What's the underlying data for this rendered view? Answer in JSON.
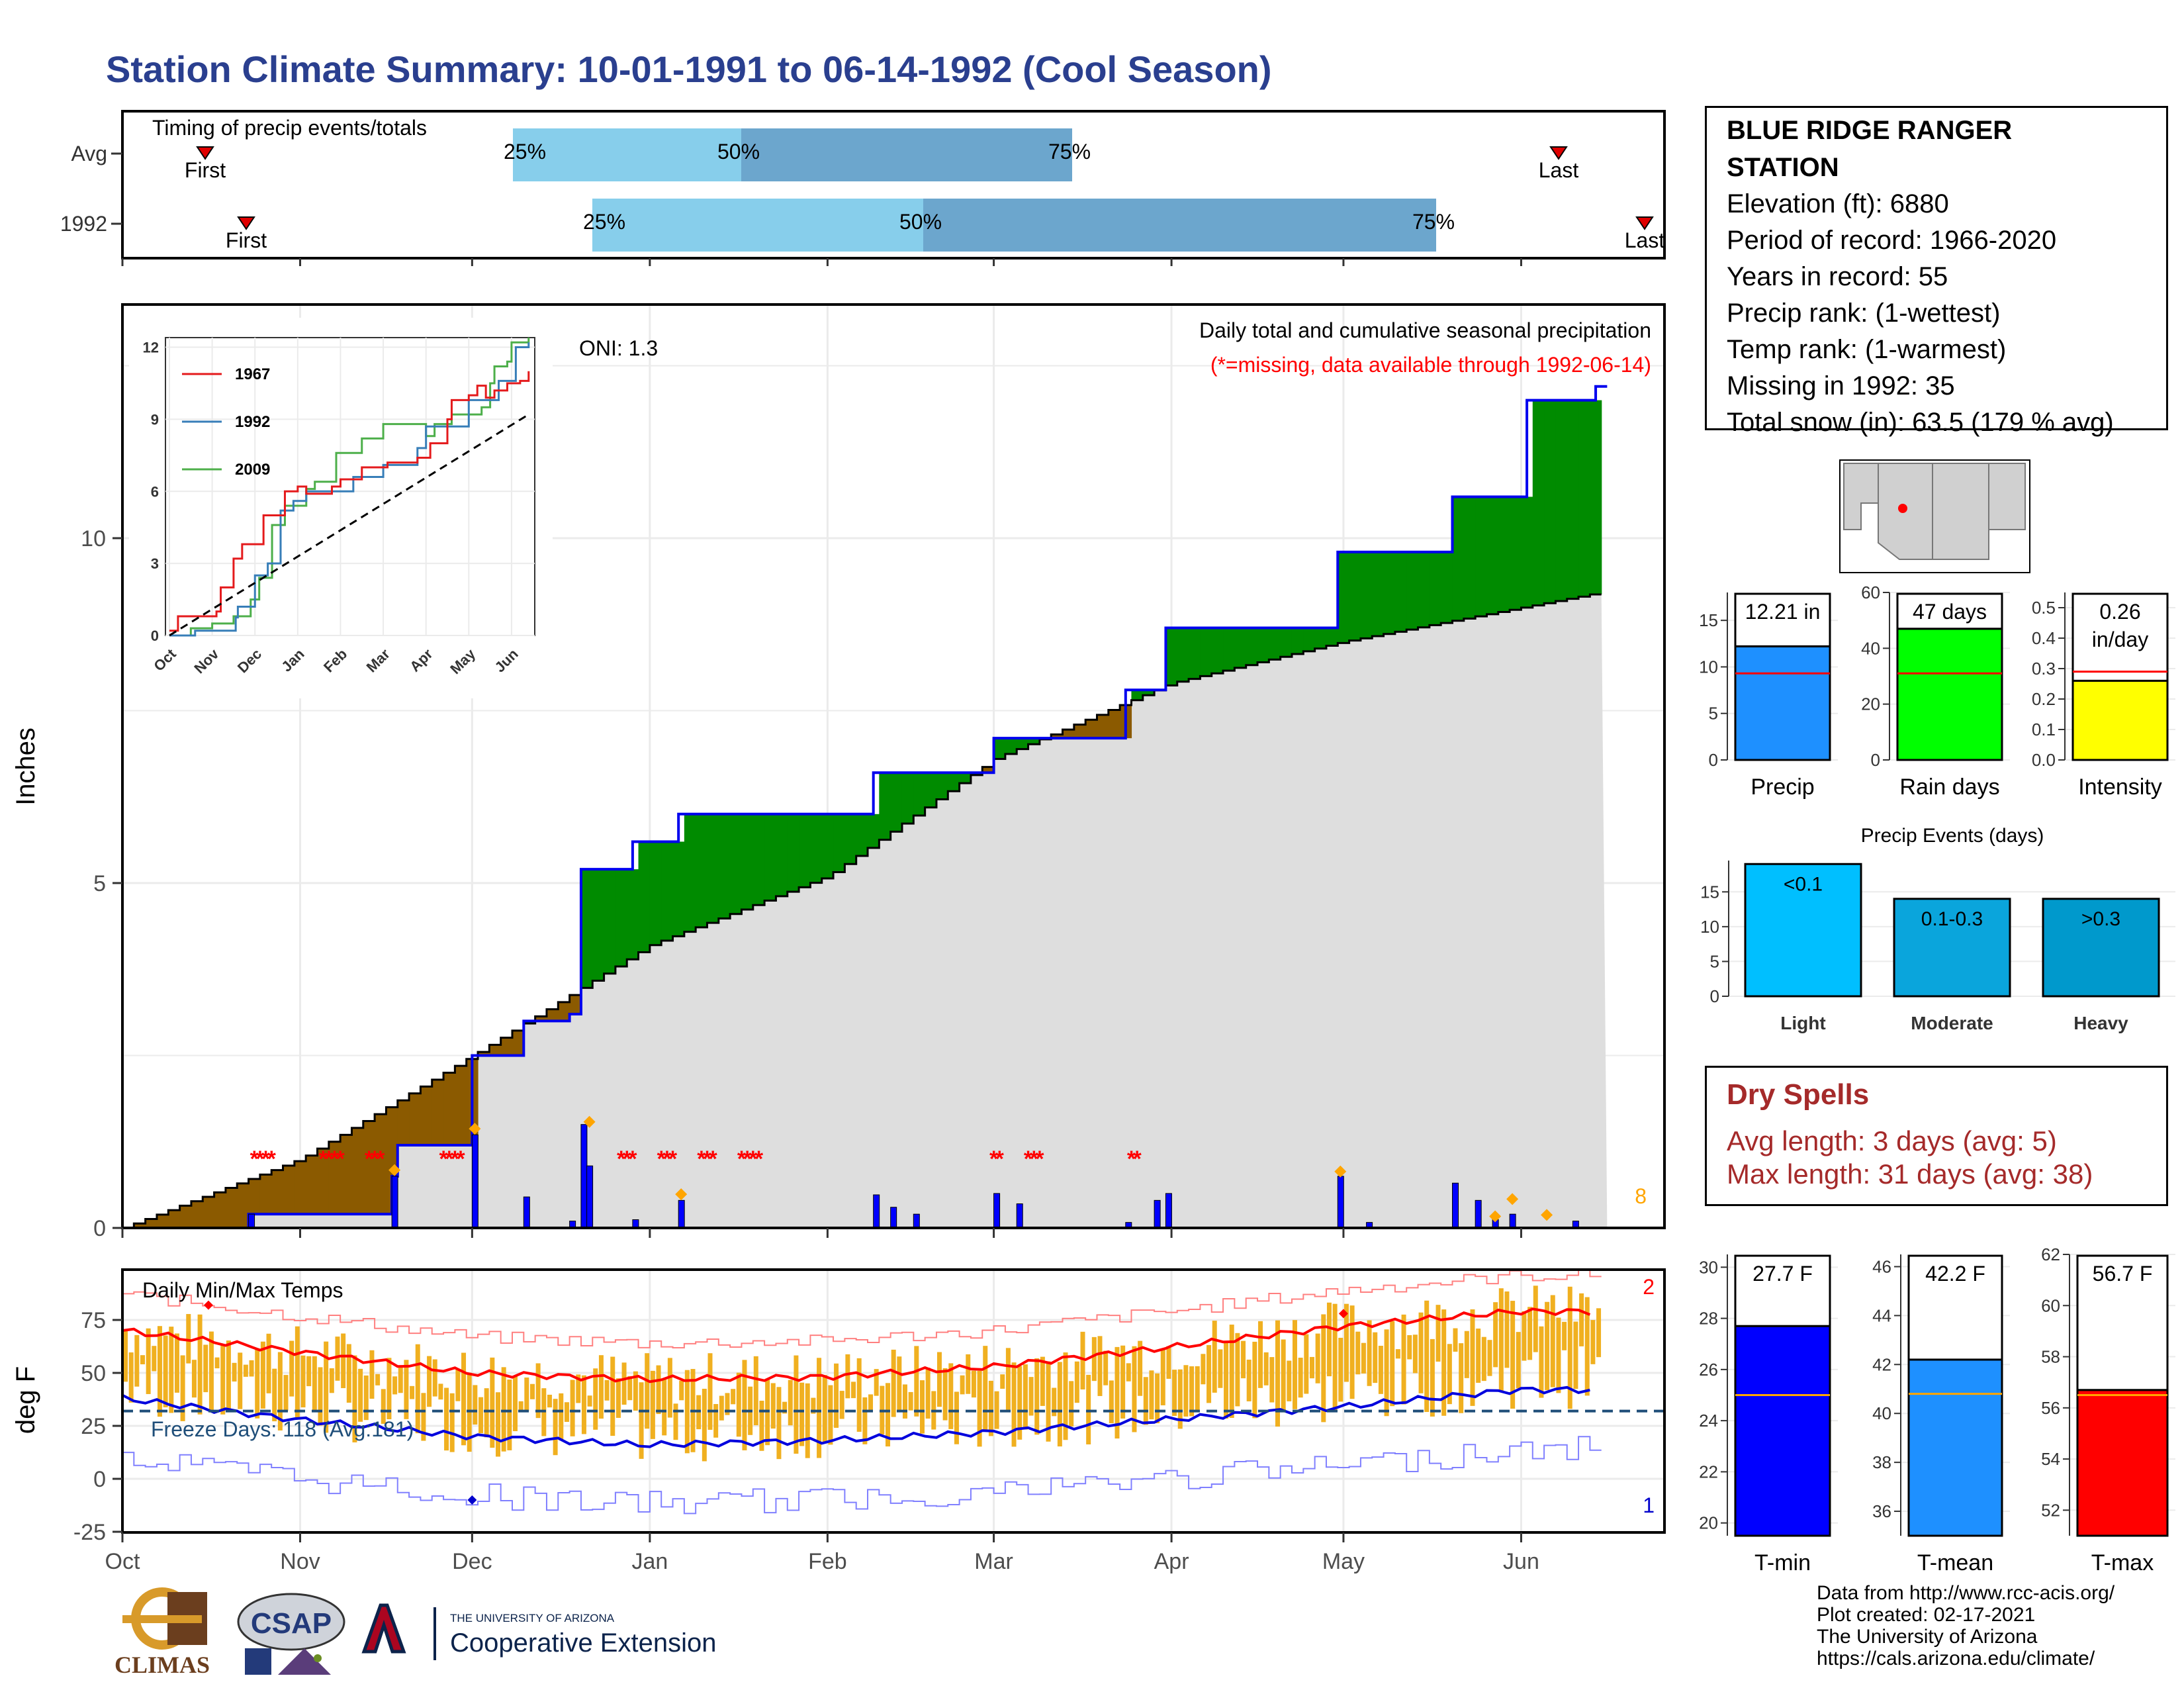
{
  "title": "Station Climate Summary: 10-01-1991 to 06-14-1992 (Cool Season)",
  "timing": {
    "label": "Timing of precip events/totals",
    "rows": [
      {
        "name": "Avg",
        "first_label": "First",
        "last_label": "Last",
        "q25": "25%",
        "q50": "50%",
        "q75": "75%"
      },
      {
        "name": "1992",
        "first_label": "First",
        "last_label": "Last",
        "q25": "25%",
        "q50": "50%",
        "q75": "75%"
      }
    ]
  },
  "station": {
    "name": "BLUE RIDGE RANGER STATION",
    "elevation": "Elevation (ft): 6880",
    "period": "Period of record: 1966-2020",
    "years": "Years in record: 55",
    "precip_rank": "Precip rank:  (1-wettest)",
    "temp_rank": "Temp rank:  (1-warmest)",
    "missing": "Missing in 1992: 35",
    "snow": "Total snow (in): 63.5 (179 % avg)"
  },
  "precip_panel": {
    "oni": "ONI: 1.3",
    "note1": "Daily total and cumulative seasonal precipitation",
    "note2": "(*=missing, data available through 1992-06-14)",
    "ylabel": "Inches",
    "count_label": "8"
  },
  "temp_panel": {
    "label": "Daily Min/Max Temps",
    "freeze": "Freeze Days: 118 (Avg:181)",
    "ylabel": "deg F",
    "count_max": "2",
    "count_min": "1"
  },
  "month_labels": [
    "Oct",
    "Nov",
    "Dec",
    "Jan",
    "Feb",
    "Mar",
    "Apr",
    "May",
    "Jun"
  ],
  "inset": {
    "legend": [
      "1967",
      "1992",
      "2009"
    ],
    "colors": [
      "#e41a1c",
      "#377eb8",
      "#4daf4a"
    ],
    "yticks": [
      "0",
      "3",
      "6",
      "9",
      "12"
    ],
    "xticks": [
      "Oct",
      "Nov",
      "Dec",
      "Jan",
      "Feb",
      "Mar",
      "Apr",
      "May",
      "Jun"
    ]
  },
  "summary_bars": [
    {
      "label": "Precip",
      "value_text": "12.21 in",
      "value": 12.21,
      "avg": 9.3,
      "ylim": [
        0,
        18
      ],
      "ticks": [
        0,
        5,
        10,
        15
      ],
      "color": "#1e90ff"
    },
    {
      "label": "Rain days",
      "value_text": "47 days",
      "value": 47,
      "avg": 31,
      "ylim": [
        0,
        60
      ],
      "ticks": [
        0,
        20,
        40,
        60
      ],
      "color": "#00ff00"
    },
    {
      "label": "Intensity",
      "value_text": "0.26 in/day",
      "value": 0.26,
      "avg": 0.29,
      "ylim": [
        0,
        0.55
      ],
      "ticks": [
        "0.0",
        "0.1",
        "0.2",
        "0.3",
        "0.4",
        "0.5"
      ],
      "color": "#ffff00"
    }
  ],
  "events": {
    "title": "Precip Events (days)",
    "bars": [
      {
        "label": "Light",
        "top": "<0.1",
        "value": 19,
        "color": "#00bfff"
      },
      {
        "label": "Moderate",
        "top": "0.1-0.3",
        "value": 14,
        "color": "#0aa5dc"
      },
      {
        "label": "Heavy",
        "top": ">0.3",
        "value": 14,
        "color": "#0099cc"
      }
    ],
    "ticks": [
      0,
      5,
      10,
      15
    ]
  },
  "dry_spells": {
    "title": "Dry Spells",
    "avg": "Avg length: 3 days (avg: 5)",
    "max": "Max length: 31 days (avg: 38)"
  },
  "temp_bars": [
    {
      "label": "T-min",
      "value_text": "27.7 F",
      "value": 27.7,
      "avg": 25,
      "ylim": [
        19.5,
        30.5
      ],
      "ticks": [
        20,
        22,
        24,
        26,
        28,
        30
      ],
      "color": "#0000ff"
    },
    {
      "label": "T-mean",
      "value_text": "42.2 F",
      "value": 42.2,
      "avg": 40.8,
      "ylim": [
        35,
        46.5
      ],
      "ticks": [
        36,
        38,
        40,
        42,
        44,
        46
      ],
      "color": "#1e90ff"
    },
    {
      "label": "T-max",
      "value_text": "56.7 F",
      "value": 56.7,
      "avg": 56.5,
      "ylim": [
        51,
        62
      ],
      "ticks": [
        52,
        54,
        56,
        58,
        60,
        62
      ],
      "color": "#ff0000"
    }
  ],
  "credits": [
    "Data from http://www.rcc-acis.org/",
    "Plot created: 02-17-2021",
    "The University of Arizona",
    "https://cals.arizona.edu/climate/"
  ],
  "logos": {
    "climas": "CLIMAS",
    "csap": "CSAP",
    "ua_small": "THE UNIVERSITY OF ARIZONA",
    "ua_big": "Cooperative Extension"
  },
  "chart_data": {
    "type": "area",
    "title": "Station Climate Summary: 10-01-1991 to 06-14-1992 (Cool Season)",
    "ylabel": "Inches",
    "ylim": [
      0,
      13.5
    ],
    "cumulative_1992": [
      {
        "date": "1991-10-01",
        "value": 0
      },
      {
        "date": "1991-10-23",
        "value": 0.2
      },
      {
        "date": "1991-11-17",
        "value": 0.75
      },
      {
        "date": "1991-11-18",
        "value": 1.2
      },
      {
        "date": "1991-12-01",
        "value": 2.5
      },
      {
        "date": "1991-12-10",
        "value": 3.0
      },
      {
        "date": "1991-12-18",
        "value": 3.1
      },
      {
        "date": "1991-12-20",
        "value": 5.2
      },
      {
        "date": "1991-12-29",
        "value": 5.6
      },
      {
        "date": "1992-01-06",
        "value": 6.0
      },
      {
        "date": "1992-02-09",
        "value": 6.6
      },
      {
        "date": "1992-03-01",
        "value": 7.1
      },
      {
        "date": "1992-03-24",
        "value": 7.8
      },
      {
        "date": "1992-03-31",
        "value": 8.7
      },
      {
        "date": "1992-04-30",
        "value": 9.8
      },
      {
        "date": "1992-05-20",
        "value": 10.6
      },
      {
        "date": "1992-06-02",
        "value": 12.0
      },
      {
        "date": "1992-06-14",
        "value": 12.2
      }
    ],
    "cumulative_avg": [
      {
        "date": "1991-10-01",
        "value": 0
      },
      {
        "date": "1991-11-01",
        "value": 1.0
      },
      {
        "date": "1991-12-01",
        "value": 2.5
      },
      {
        "date": "1992-01-01",
        "value": 4.1
      },
      {
        "date": "1992-02-01",
        "value": 5.1
      },
      {
        "date": "1992-03-01",
        "value": 6.8
      },
      {
        "date": "1992-04-01",
        "value": 7.9
      },
      {
        "date": "1992-05-01",
        "value": 8.5
      },
      {
        "date": "1992-06-14",
        "value": 9.2
      }
    ],
    "temps": {
      "ylim": [
        -27,
        95
      ],
      "avg_max": [
        {
          "month": "Oct",
          "value": 70
        },
        {
          "month": "Nov",
          "value": 60
        },
        {
          "month": "Dec",
          "value": 50
        },
        {
          "month": "Jan",
          "value": 47
        },
        {
          "month": "Feb",
          "value": 48
        },
        {
          "month": "Mar",
          "value": 53
        },
        {
          "month": "Apr",
          "value": 62
        },
        {
          "month": "May",
          "value": 72
        },
        {
          "month": "Jun",
          "value": 79
        }
      ],
      "avg_min": [
        {
          "month": "Oct",
          "value": 38
        },
        {
          "month": "Nov",
          "value": 28
        },
        {
          "month": "Dec",
          "value": 20
        },
        {
          "month": "Jan",
          "value": 16
        },
        {
          "month": "Feb",
          "value": 18
        },
        {
          "month": "Mar",
          "value": 22
        },
        {
          "month": "Apr",
          "value": 28
        },
        {
          "month": "May",
          "value": 34
        },
        {
          "month": "Jun",
          "value": 42
        }
      ],
      "freeze_line": 32
    }
  }
}
